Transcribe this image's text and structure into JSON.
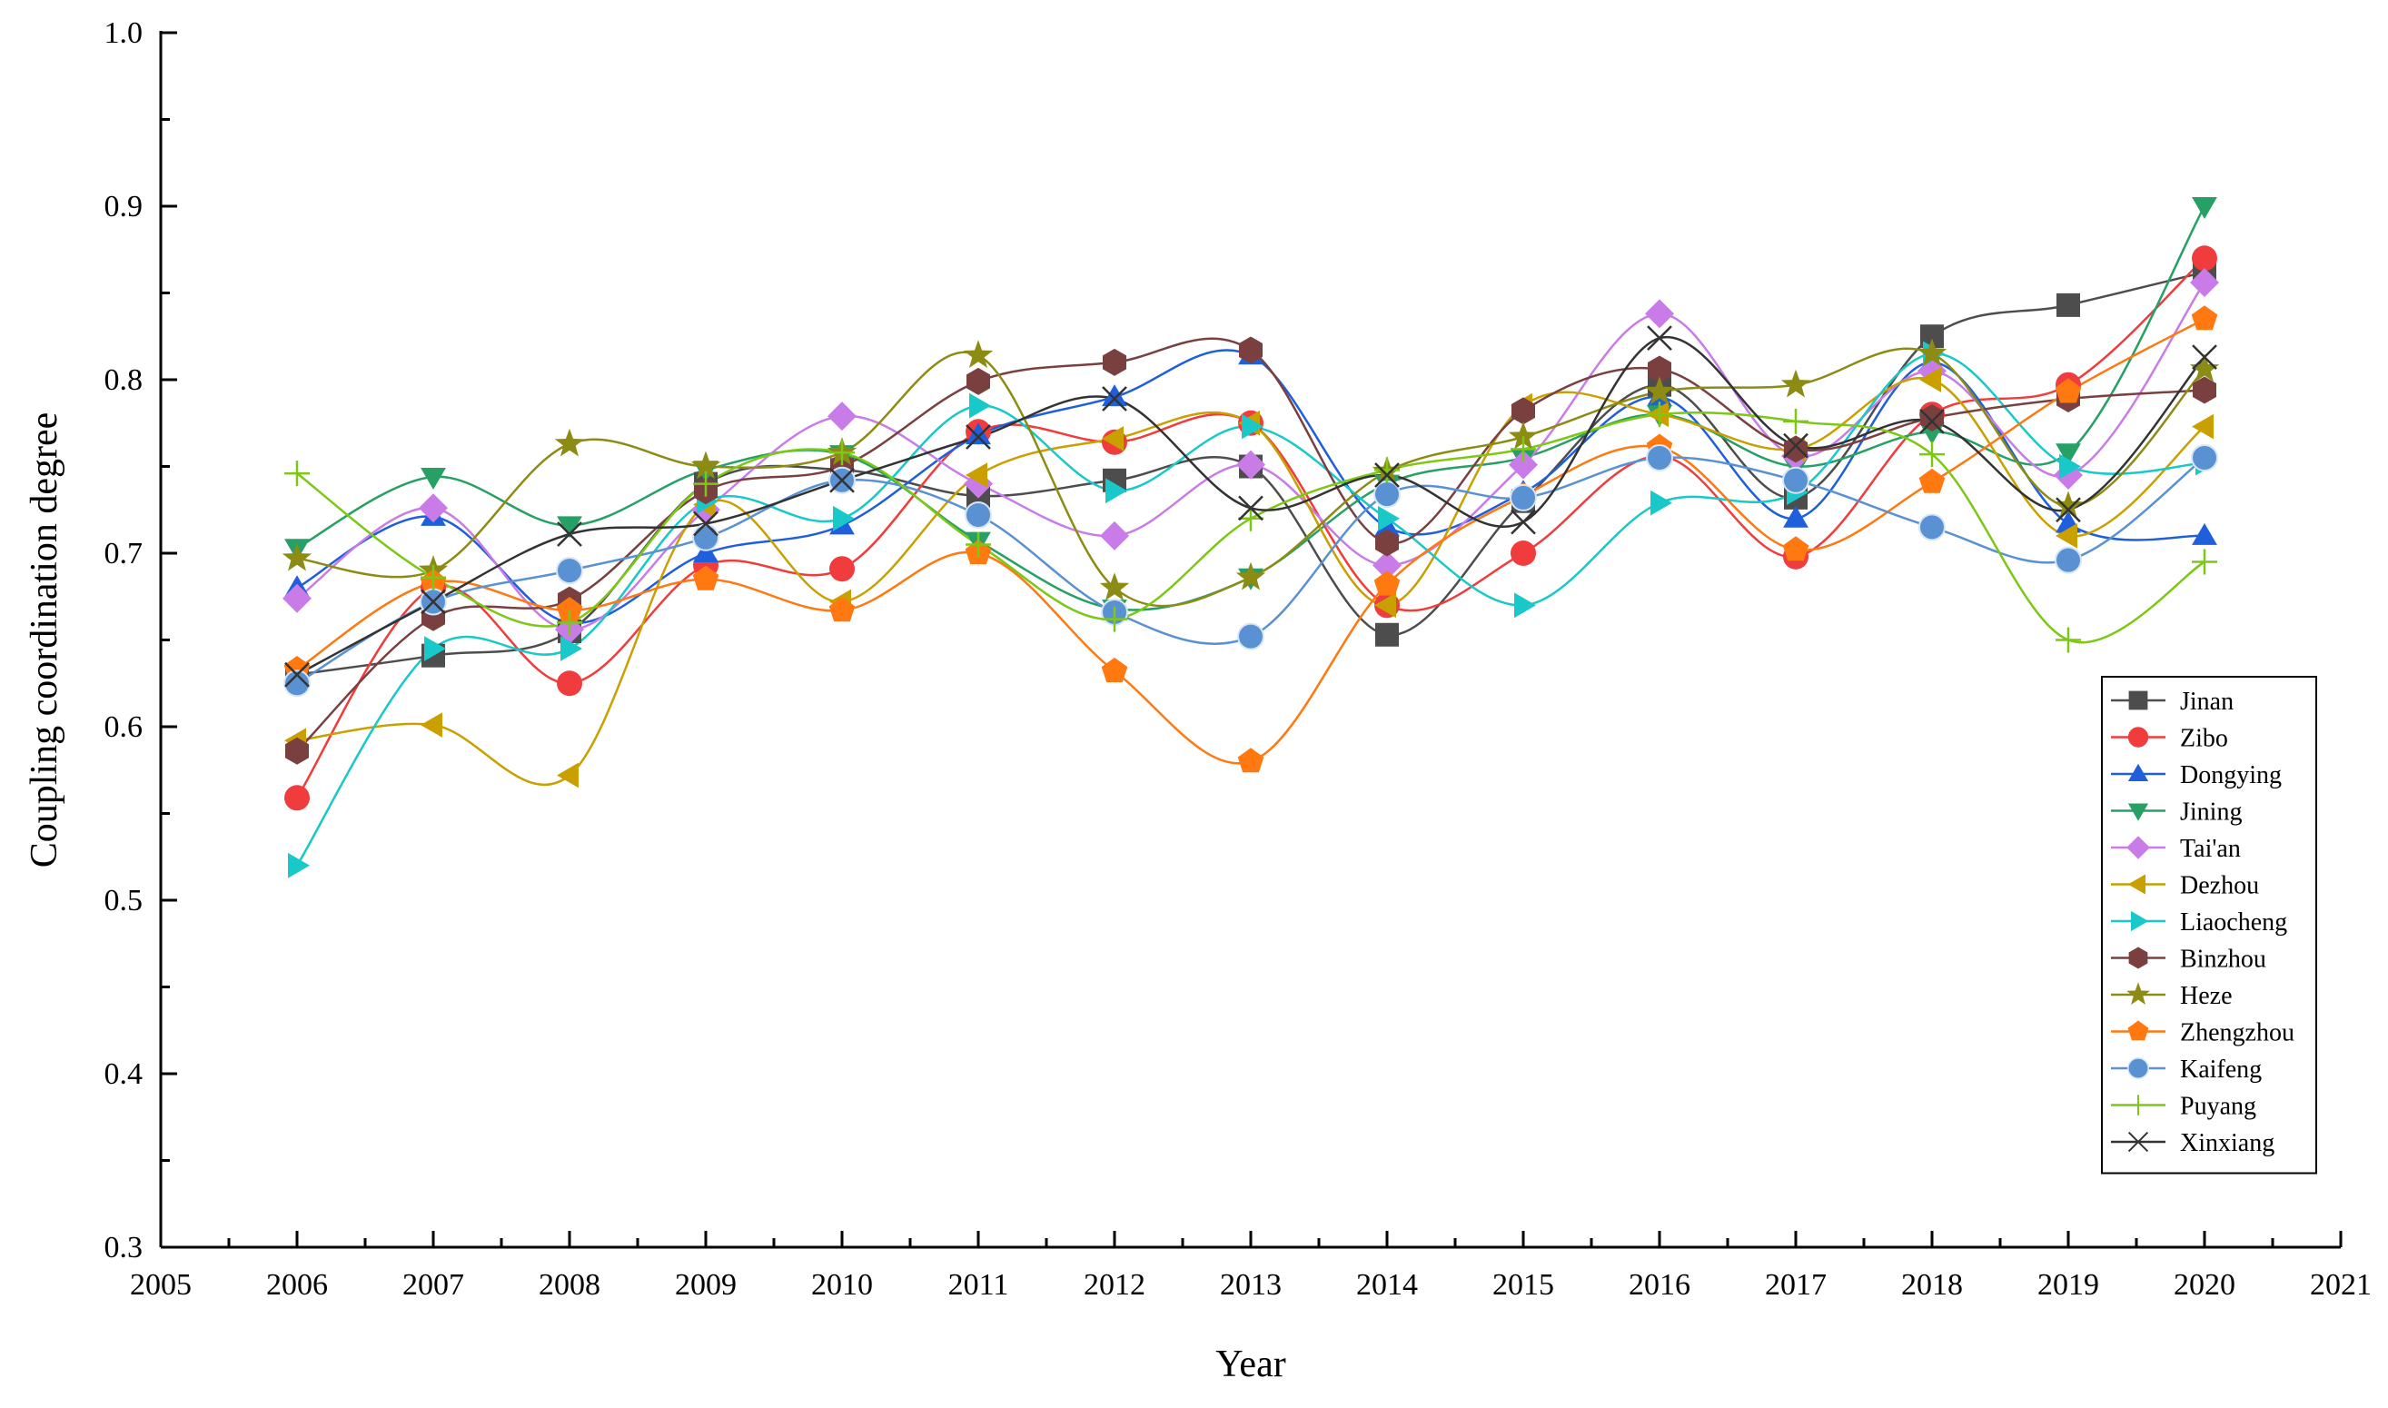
{
  "chart_data": {
    "type": "line",
    "title": "",
    "xlabel": "Year",
    "ylabel": "Coupling coordination degree",
    "xlim": [
      2005,
      2021
    ],
    "ylim": [
      0.3,
      1.0
    ],
    "x_ticks": [
      "2005",
      "2006",
      "2007",
      "2008",
      "2009",
      "2010",
      "2011",
      "2012",
      "2013",
      "2014",
      "2015",
      "2016",
      "2017",
      "2018",
      "2019",
      "2020",
      "2021"
    ],
    "y_ticks": [
      "0.3",
      "0.4",
      "0.5",
      "0.6",
      "0.7",
      "0.8",
      "0.9",
      "1.0"
    ],
    "legend_position": "bottom-right",
    "x": [
      2006,
      2007,
      2008,
      2009,
      2010,
      2011,
      2012,
      2013,
      2014,
      2015,
      2016,
      2017,
      2018,
      2019,
      2020
    ],
    "series": [
      {
        "name": "Jinan",
        "color": "#4d4d4d",
        "marker": "square",
        "values": [
          0.63,
          0.641,
          0.655,
          0.74,
          0.748,
          0.733,
          0.742,
          0.75,
          0.653,
          0.73,
          0.797,
          0.732,
          0.825,
          0.843,
          0.862
        ]
      },
      {
        "name": "Zibo",
        "color": "#f03c3c",
        "marker": "circle",
        "values": [
          0.559,
          0.68,
          0.625,
          0.693,
          0.691,
          0.77,
          0.764,
          0.775,
          0.67,
          0.7,
          0.756,
          0.698,
          0.78,
          0.797,
          0.87
        ]
      },
      {
        "name": "Dongying",
        "color": "#1f5fdc",
        "marker": "triangle-up",
        "values": [
          0.68,
          0.721,
          0.66,
          0.7,
          0.716,
          0.768,
          0.79,
          0.814,
          0.715,
          0.735,
          0.79,
          0.72,
          0.81,
          0.717,
          0.71
        ]
      },
      {
        "name": "Jining",
        "color": "#26a065",
        "marker": "triangle-down",
        "values": [
          0.703,
          0.744,
          0.716,
          0.748,
          0.757,
          0.707,
          0.668,
          0.686,
          0.74,
          0.755,
          0.78,
          0.75,
          0.77,
          0.758,
          0.9
        ]
      },
      {
        "name": "Tai'an",
        "color": "#c97be8",
        "marker": "diamond",
        "values": [
          0.674,
          0.726,
          0.656,
          0.725,
          0.779,
          0.74,
          0.71,
          0.751,
          0.693,
          0.751,
          0.838,
          0.756,
          0.805,
          0.745,
          0.856
        ]
      },
      {
        "name": "Dezhou",
        "color": "#c9a000",
        "marker": "triangle-left",
        "values": [
          0.592,
          0.601,
          0.572,
          0.728,
          0.672,
          0.745,
          0.766,
          0.775,
          0.67,
          0.785,
          0.78,
          0.76,
          0.8,
          0.71,
          0.773
        ]
      },
      {
        "name": "Liaocheng",
        "color": "#19c8c8",
        "marker": "triangle-right",
        "values": [
          0.52,
          0.645,
          0.645,
          0.73,
          0.72,
          0.785,
          0.736,
          0.773,
          0.72,
          0.67,
          0.729,
          0.735,
          0.815,
          0.75,
          0.752
        ]
      },
      {
        "name": "Binzhou",
        "color": "#7a4040",
        "marker": "hexagon",
        "values": [
          0.586,
          0.663,
          0.673,
          0.736,
          0.75,
          0.799,
          0.81,
          0.817,
          0.706,
          0.782,
          0.806,
          0.76,
          0.778,
          0.789,
          0.794
        ]
      },
      {
        "name": "Heze",
        "color": "#8c8c14",
        "marker": "star",
        "values": [
          0.697,
          0.69,
          0.763,
          0.75,
          0.758,
          0.814,
          0.68,
          0.686,
          0.747,
          0.767,
          0.793,
          0.797,
          0.815,
          0.727,
          0.806
        ]
      },
      {
        "name": "Zhengzhou",
        "color": "#ff7810",
        "marker": "pentagon",
        "values": [
          0.633,
          0.683,
          0.667,
          0.685,
          0.667,
          0.7,
          0.632,
          0.58,
          0.682,
          0.733,
          0.761,
          0.702,
          0.741,
          0.793,
          0.835
        ]
      },
      {
        "name": "Kaifeng",
        "color": "#5a91d2",
        "marker": "sphere",
        "values": [
          0.625,
          0.672,
          0.69,
          0.709,
          0.742,
          0.722,
          0.666,
          0.652,
          0.734,
          0.732,
          0.755,
          0.742,
          0.715,
          0.696,
          0.755
        ]
      },
      {
        "name": "Puyang",
        "color": "#7cc814",
        "marker": "plus",
        "values": [
          0.746,
          0.686,
          0.66,
          0.74,
          0.758,
          0.705,
          0.662,
          0.72,
          0.748,
          0.76,
          0.78,
          0.776,
          0.757,
          0.65,
          0.695
        ]
      },
      {
        "name": "Xinxiang",
        "color": "#333333",
        "marker": "cross",
        "values": [
          0.63,
          0.672,
          0.711,
          0.717,
          0.742,
          0.767,
          0.789,
          0.726,
          0.745,
          0.718,
          0.824,
          0.762,
          0.776,
          0.725,
          0.813
        ]
      }
    ]
  }
}
